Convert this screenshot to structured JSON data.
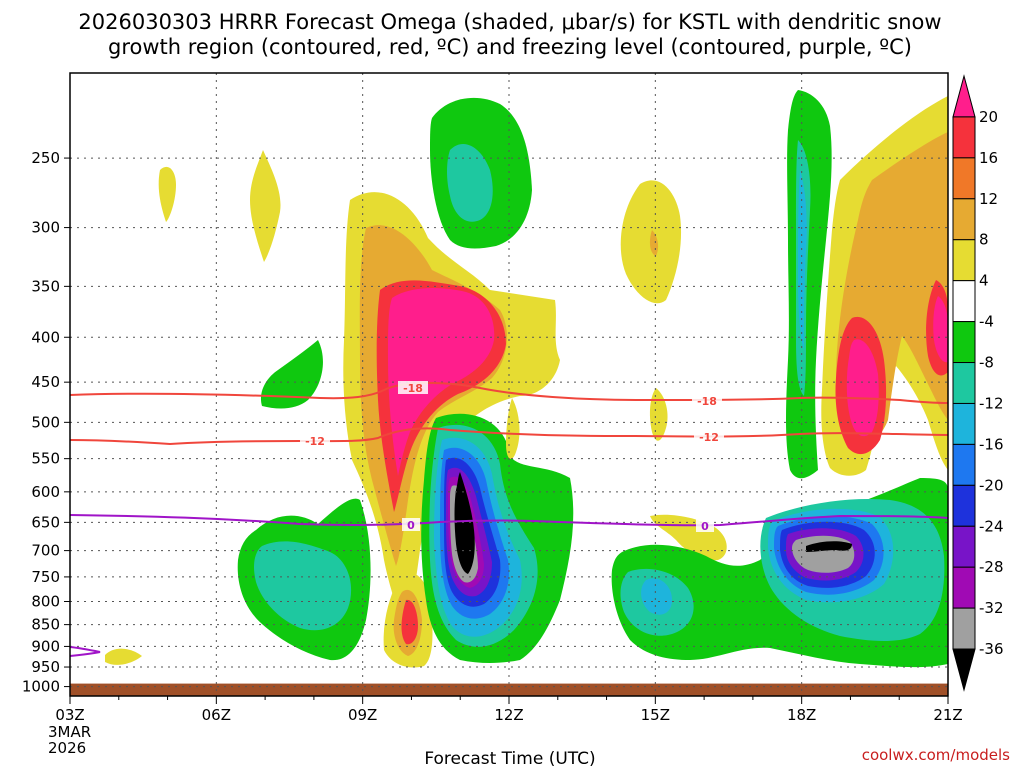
{
  "chart_data": {
    "type": "heatmap",
    "title_line1": "2026030303 HRRR Forecast Omega (shaded, μbar/s) for KSTL with dendritic snow",
    "title_line2": "growth region (contoured, red, ºC) and freezing level (contoured, purple, ºC)",
    "xlabel": "Forecast Time (UTC)",
    "x_range": [
      0,
      18
    ],
    "x_ticks": [
      {
        "hour": 0,
        "label": "03Z"
      },
      {
        "hour": 3,
        "label": "06Z"
      },
      {
        "hour": 6,
        "label": "09Z"
      },
      {
        "hour": 9,
        "label": "12Z"
      },
      {
        "hour": 12,
        "label": "15Z"
      },
      {
        "hour": 15,
        "label": "18Z"
      },
      {
        "hour": 18,
        "label": "21Z"
      }
    ],
    "date_label_line1": "3MAR",
    "date_label_line2": "2026",
    "y_ticks": [
      250,
      300,
      350,
      400,
      450,
      500,
      550,
      600,
      650,
      700,
      750,
      800,
      850,
      900,
      950,
      1000
    ],
    "y_range_hpa": [
      200,
      1025
    ],
    "colorbar": {
      "labels": [
        "20",
        "16",
        "12",
        "8",
        "4",
        "-4",
        "-8",
        "-12",
        "-16",
        "-20",
        "-24",
        "-28",
        "-32",
        "-36"
      ],
      "colors": [
        "#ff1e8c",
        "#f5323c",
        "#f07828",
        "#e6aa32",
        "#e6dc32",
        "#ffffff",
        "#0fc80f",
        "#1ec8a0",
        "#1eb4dc",
        "#1e78f0",
        "#1e32dc",
        "#7814c8",
        "#a00ab4",
        "#a0a0a0",
        "#000000"
      ]
    },
    "omega_regions": [
      {
        "level": 4,
        "color": "#e6dc32",
        "hour_min": 6.0,
        "hour_max": 9.5,
        "p_min": 270,
        "p_max": 960
      },
      {
        "level": 8,
        "color": "#e6aa32",
        "hour_min": 6.3,
        "hour_max": 8.7,
        "p_min": 310,
        "p_max": 600
      },
      {
        "level": 16,
        "color": "#f5323c",
        "hour_min": 6.6,
        "hour_max": 8.4,
        "p_min": 340,
        "p_max": 560
      },
      {
        "level": 20,
        "color": "#ff1e8c",
        "hour_min": 6.8,
        "hour_max": 8.2,
        "p_min": 365,
        "p_max": 540
      },
      {
        "level": -8,
        "color": "#0fc80f",
        "hour_min": 7.5,
        "hour_max": 9.4,
        "p_min": 190,
        "p_max": 325
      },
      {
        "level": -12,
        "color": "#1ec8a0",
        "hour_min": 8.0,
        "hour_max": 8.8,
        "p_min": 250,
        "p_max": 315
      },
      {
        "level": -8,
        "color": "#0fc80f",
        "hour_min": 7.2,
        "hour_max": 10.2,
        "p_min": 550,
        "p_max": 960
      },
      {
        "level": -36,
        "color": "#000000",
        "hour_min": 7.9,
        "hour_max": 8.3,
        "p_min": 620,
        "p_max": 830
      },
      {
        "level": -8,
        "color": "#0fc80f",
        "hour_min": 14.5,
        "hour_max": 17.0,
        "p_min": 210,
        "p_max": 960
      },
      {
        "level": -36,
        "color": "#000000",
        "hour_min": 15.4,
        "hour_max": 16.5,
        "p_min": 690,
        "p_max": 720
      },
      {
        "level": 20,
        "color": "#ff1e8c",
        "hour_min": 16.4,
        "hour_max": 16.9,
        "p_min": 420,
        "p_max": 570
      }
    ],
    "isotherms": [
      {
        "name": "dendritic growth top",
        "value": "-18",
        "color": "#f0463c",
        "p_start": 480,
        "p_end": 490
      },
      {
        "name": "dendritic growth bottom",
        "value": "-12",
        "color": "#f0463c",
        "p_start": 540,
        "p_end": 535
      },
      {
        "name": "freezing level",
        "value": "0",
        "color": "#a014c8",
        "p_start": 658,
        "p_end": 662
      }
    ],
    "surface_color": "#a05028"
  },
  "credit": "coolwx.com/models"
}
